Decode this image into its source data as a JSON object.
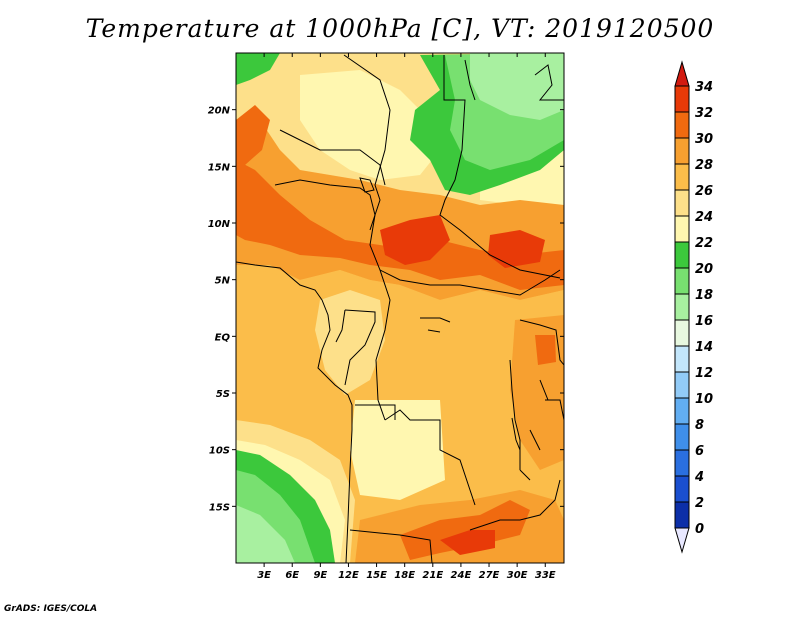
{
  "title": "Temperature at 1000hPa [C], VT: 2019120500",
  "credit": "GrADS: IGES/COLA",
  "map": {
    "lon_range": [
      0,
      35
    ],
    "lat_range": [
      -20,
      25
    ],
    "lon_ticks": [
      "3E",
      "6E",
      "9E",
      "12E",
      "15E",
      "18E",
      "21E",
      "24E",
      "27E",
      "30E",
      "33E"
    ],
    "lat_ticks": [
      "20N",
      "15N",
      "10N",
      "5N",
      "EQ",
      "5S",
      "10S",
      "15S"
    ]
  },
  "colorbar": {
    "levels": [
      "0",
      "2",
      "4",
      "6",
      "8",
      "10",
      "12",
      "14",
      "16",
      "18",
      "20",
      "22",
      "24",
      "26",
      "28",
      "30",
      "32",
      "34"
    ],
    "colors": [
      "#0a1a7a",
      "#0c2fa8",
      "#1a4fd0",
      "#2a6fe0",
      "#3f8fea",
      "#62aef2",
      "#92cbf7",
      "#c3e6fb",
      "#e8f8e0",
      "#a8f0a0",
      "#78e070",
      "#3cc83c",
      "#fff7b0",
      "#fde08a",
      "#fbbd4a",
      "#f7a030",
      "#f06a10",
      "#e83a08",
      "#d21a10"
    ]
  },
  "field_colors": {
    "c18": "#a8f0a0",
    "c20": "#78e070",
    "c22": "#3cc83c",
    "c24": "#fff7b0",
    "c26": "#fde08a",
    "c28": "#fbbd4a",
    "c30": "#f7a030",
    "c32": "#f06a10",
    "c34": "#e83a08"
  }
}
